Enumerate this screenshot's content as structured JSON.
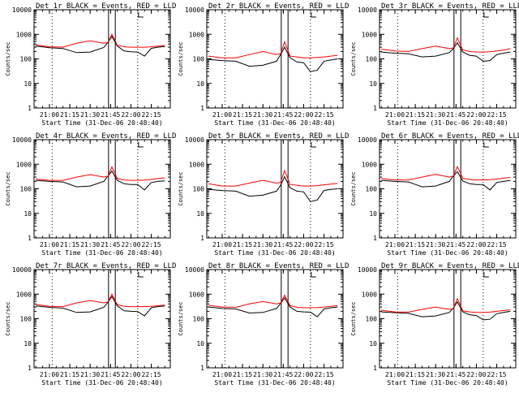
{
  "figure": {
    "event_color": "#000000",
    "lld_color": "#ff0000",
    "y_scale": "log",
    "y_tick_labels": [
      "1",
      "10",
      "100",
      "1000",
      "10000"
    ],
    "x_tick_labels": [
      "21:00",
      "21:15",
      "21:30",
      "21:45",
      "22:00",
      "22:15"
    ],
    "xlabel": "Start Time (31-Dec-06 20:48:40)",
    "ylabel": "Counts/sec"
  },
  "chart_data": [
    {
      "type": "line",
      "title": "Det 1r BLACK = Events, RED = LLD",
      "xlabel": "Start Time (31-Dec-06 20:48:40)",
      "ylabel": "Counts/sec",
      "ylim": [
        1,
        10000
      ],
      "y_scale": "log",
      "x": [
        "20:50",
        "21:00",
        "21:10",
        "21:20",
        "21:30",
        "21:40",
        "21:43",
        "21:46",
        "21:50",
        "21:55",
        "22:00",
        "22:05",
        "22:10",
        "22:15",
        "22:20",
        "22:25"
      ],
      "series": [
        {
          "name": "Events",
          "color": "#000000",
          "values": [
            330,
            285,
            265,
            180,
            190,
            290,
            470,
            820,
            330,
            210,
            195,
            190,
            130,
            270,
            300,
            320
          ]
        },
        {
          "name": "LLD",
          "color": "#ff0000",
          "values": [
            370,
            310,
            300,
            430,
            540,
            430,
            470,
            1000,
            360,
            310,
            300,
            300,
            300,
            310,
            330,
            350
          ]
        }
      ]
    },
    {
      "type": "line",
      "title": "Det 2r BLACK = Events, RED = LLD",
      "xlabel": "Start Time (31-Dec-06 20:48:40)",
      "ylabel": "Counts/sec",
      "ylim": [
        1,
        10000
      ],
      "y_scale": "log",
      "x": [
        "20:50",
        "21:00",
        "21:10",
        "21:20",
        "21:30",
        "21:40",
        "21:43",
        "21:46",
        "21:50",
        "21:55",
        "22:00",
        "22:05",
        "22:10",
        "22:15",
        "22:20",
        "22:25"
      ],
      "series": [
        {
          "name": "Events",
          "color": "#000000",
          "values": [
            95,
            85,
            80,
            50,
            55,
            80,
            150,
            300,
            110,
            75,
            70,
            30,
            35,
            80,
            90,
            100
          ]
        },
        {
          "name": "LLD",
          "color": "#ff0000",
          "values": [
            130,
            110,
            110,
            150,
            200,
            150,
            160,
            500,
            130,
            120,
            110,
            110,
            115,
            120,
            130,
            140
          ]
        }
      ]
    },
    {
      "type": "line",
      "title": "Det 3r BLACK = Events, RED = LLD",
      "xlabel": "Start Time (31-Dec-06 20:48:40)",
      "ylabel": "Counts/sec",
      "ylim": [
        1,
        10000
      ],
      "y_scale": "log",
      "x": [
        "20:50",
        "21:00",
        "21:10",
        "21:20",
        "21:30",
        "21:40",
        "21:43",
        "21:46",
        "21:50",
        "21:55",
        "22:00",
        "22:05",
        "22:10",
        "22:15",
        "22:20",
        "22:25"
      ],
      "series": [
        {
          "name": "Events",
          "color": "#000000",
          "values": [
            190,
            170,
            160,
            120,
            130,
            180,
            260,
            450,
            190,
            140,
            130,
            80,
            85,
            150,
            170,
            190
          ]
        },
        {
          "name": "LLD",
          "color": "#ff0000",
          "values": [
            250,
            210,
            200,
            260,
            330,
            260,
            280,
            720,
            230,
            200,
            190,
            190,
            195,
            210,
            230,
            260
          ]
        }
      ]
    },
    {
      "type": "line",
      "title": "Det 4r BLACK = Events, RED = LLD",
      "xlabel": "Start Time (31-Dec-06 20:48:40)",
      "ylabel": "Counts/sec",
      "ylim": [
        1,
        10000
      ],
      "y_scale": "log",
      "x": [
        "20:50",
        "21:00",
        "21:10",
        "21:20",
        "21:30",
        "21:40",
        "21:43",
        "21:46",
        "21:50",
        "21:55",
        "22:00",
        "22:05",
        "22:10",
        "22:15",
        "22:20",
        "22:25"
      ],
      "series": [
        {
          "name": "Events",
          "color": "#000000",
          "values": [
            220,
            200,
            190,
            120,
            130,
            200,
            330,
            520,
            220,
            160,
            150,
            150,
            90,
            180,
            200,
            210
          ]
        },
        {
          "name": "LLD",
          "color": "#ff0000",
          "values": [
            250,
            220,
            220,
            300,
            380,
            300,
            320,
            780,
            260,
            230,
            220,
            220,
            225,
            240,
            260,
            280
          ]
        }
      ]
    },
    {
      "type": "line",
      "title": "Det 5r BLACK = Events, RED = LLD",
      "xlabel": "Start Time (31-Dec-06 20:48:40)",
      "ylabel": "Counts/sec",
      "ylim": [
        1,
        10000
      ],
      "y_scale": "log",
      "x": [
        "20:50",
        "21:00",
        "21:10",
        "21:20",
        "21:30",
        "21:40",
        "21:43",
        "21:46",
        "21:50",
        "21:55",
        "22:00",
        "22:05",
        "22:10",
        "22:15",
        "22:20",
        "22:25"
      ],
      "series": [
        {
          "name": "Events",
          "color": "#000000",
          "values": [
            95,
            85,
            80,
            50,
            55,
            80,
            140,
            310,
            110,
            80,
            75,
            30,
            35,
            85,
            95,
            100
          ]
        },
        {
          "name": "LLD",
          "color": "#ff0000",
          "values": [
            160,
            130,
            130,
            170,
            220,
            170,
            180,
            550,
            150,
            140,
            130,
            130,
            135,
            145,
            155,
            165
          ]
        }
      ]
    },
    {
      "type": "line",
      "title": "Det 6r BLACK = Events, RED = LLD",
      "xlabel": "Start Time (31-Dec-06 20:48:40)",
      "ylabel": "Counts/sec",
      "ylim": [
        1,
        10000
      ],
      "y_scale": "log",
      "x": [
        "20:50",
        "21:00",
        "21:10",
        "21:20",
        "21:30",
        "21:40",
        "21:43",
        "21:46",
        "21:50",
        "21:55",
        "22:00",
        "22:05",
        "22:10",
        "22:15",
        "22:20",
        "22:25"
      ],
      "series": [
        {
          "name": "Events",
          "color": "#000000",
          "values": [
            220,
            200,
            190,
            120,
            130,
            200,
            330,
            500,
            210,
            160,
            150,
            150,
            90,
            180,
            200,
            220
          ]
        },
        {
          "name": "LLD",
          "color": "#ff0000",
          "values": [
            260,
            230,
            230,
            300,
            390,
            300,
            330,
            800,
            270,
            240,
            230,
            230,
            235,
            250,
            270,
            290
          ]
        }
      ]
    },
    {
      "type": "line",
      "title": "Det 7r BLACK = Events, RED = LLD",
      "xlabel": "Start Time (31-Dec-06 20:48:40)",
      "ylabel": "Counts/sec",
      "ylim": [
        1,
        10000
      ],
      "y_scale": "log",
      "x": [
        "20:50",
        "21:00",
        "21:10",
        "21:20",
        "21:30",
        "21:40",
        "21:43",
        "21:46",
        "21:50",
        "21:55",
        "22:00",
        "22:05",
        "22:10",
        "22:15",
        "22:20",
        "22:25"
      ],
      "series": [
        {
          "name": "Events",
          "color": "#000000",
          "values": [
            330,
            290,
            270,
            180,
            190,
            290,
            470,
            800,
            330,
            210,
            200,
            195,
            130,
            280,
            310,
            330
          ]
        },
        {
          "name": "LLD",
          "color": "#ff0000",
          "values": [
            380,
            320,
            310,
            440,
            550,
            440,
            480,
            1000,
            370,
            320,
            310,
            310,
            310,
            320,
            340,
            360
          ]
        }
      ]
    },
    {
      "type": "line",
      "title": "Det 8r BLACK = Events, RED = LLD",
      "xlabel": "Start Time (31-Dec-06 20:48:40)",
      "ylabel": "Counts/sec",
      "ylim": [
        1,
        10000
      ],
      "y_scale": "log",
      "x": [
        "20:50",
        "21:00",
        "21:10",
        "21:20",
        "21:30",
        "21:40",
        "21:43",
        "21:46",
        "21:50",
        "21:55",
        "22:00",
        "22:05",
        "22:10",
        "22:15",
        "22:20",
        "22:25"
      ],
      "series": [
        {
          "name": "Events",
          "color": "#000000",
          "values": [
            300,
            260,
            250,
            170,
            180,
            260,
            420,
            700,
            300,
            200,
            190,
            185,
            120,
            250,
            280,
            300
          ]
        },
        {
          "name": "LLD",
          "color": "#ff0000",
          "values": [
            350,
            300,
            290,
            400,
            500,
            400,
            430,
            900,
            340,
            290,
            280,
            280,
            285,
            300,
            320,
            340
          ]
        }
      ]
    },
    {
      "type": "line",
      "title": "Det 9r BLACK = Events, RED = LLD",
      "xlabel": "Start Time (31-Dec-06 20:48:40)",
      "ylabel": "Counts/sec",
      "ylim": [
        1,
        10000
      ],
      "y_scale": "log",
      "x": [
        "20:50",
        "21:00",
        "21:10",
        "21:20",
        "21:30",
        "21:40",
        "21:43",
        "21:46",
        "21:50",
        "21:55",
        "22:00",
        "22:05",
        "22:10",
        "22:15",
        "22:20",
        "22:25"
      ],
      "series": [
        {
          "name": "Events",
          "color": "#000000",
          "values": [
            190,
            175,
            165,
            120,
            130,
            180,
            270,
            480,
            190,
            145,
            135,
            90,
            95,
            160,
            180,
            200
          ]
        },
        {
          "name": "LLD",
          "color": "#ff0000",
          "values": [
            220,
            190,
            185,
            240,
            300,
            240,
            260,
            650,
            210,
            190,
            180,
            180,
            185,
            200,
            215,
            230
          ]
        }
      ]
    }
  ]
}
